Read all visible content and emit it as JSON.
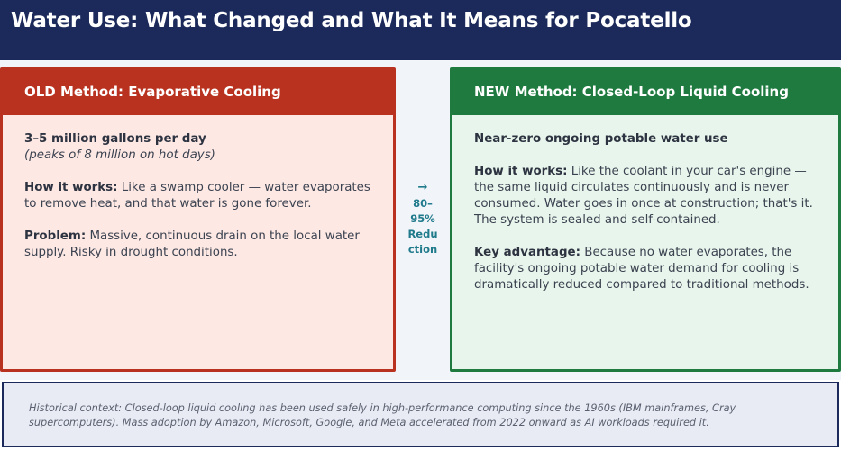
{
  "header": {
    "title": "Water Use: What Changed and What It Means for Pocatello"
  },
  "old_card": {
    "title": "OLD Method: Evaporative Cooling",
    "headline": "3–5 million gallons per day",
    "subline": "(peaks of 8 million on hot days)",
    "how_label": "How it works:",
    "how_text": " Like a swamp cooler — water evaporates to remove heat, and that water is gone forever.",
    "problem_label": "Problem:",
    "problem_text": " Massive, continuous drain on the local water supply. Risky in drought conditions."
  },
  "arrow": {
    "symbol": "→",
    "line1": "80–",
    "line2": "95%",
    "line3": "Redu",
    "line4": "ction"
  },
  "new_card": {
    "title": "NEW Method: Closed-Loop Liquid Cooling",
    "headline": "Near-zero ongoing potable water use",
    "how_label": "How it works:",
    "how_text": " Like the coolant in your car's engine — the same liquid circulates continuously and is never consumed. Water goes in once at construction; that's it. The system is sealed and self-contained.",
    "advantage_label": "Key advantage:",
    "advantage_text": " Because no water evaporates, the facility's ongoing potable water demand for cooling is dramatically reduced compared to traditional methods."
  },
  "footer": {
    "text": "Historical context: Closed-loop liquid cooling has been used safely in high-performance computing since the 1960s (IBM mainframes, Cray supercomputers). Mass adoption by Amazon, Microsoft, Google, and Meta accelerated from 2022 onward as AI workloads required it."
  },
  "colors": {
    "header_bg": "#1b2a5a",
    "old_accent": "#b8321f",
    "old_bg": "#fde8e4",
    "new_accent": "#1e7a3f",
    "new_bg": "#e8f5ec",
    "arrow_color": "#1f7a8c"
  }
}
